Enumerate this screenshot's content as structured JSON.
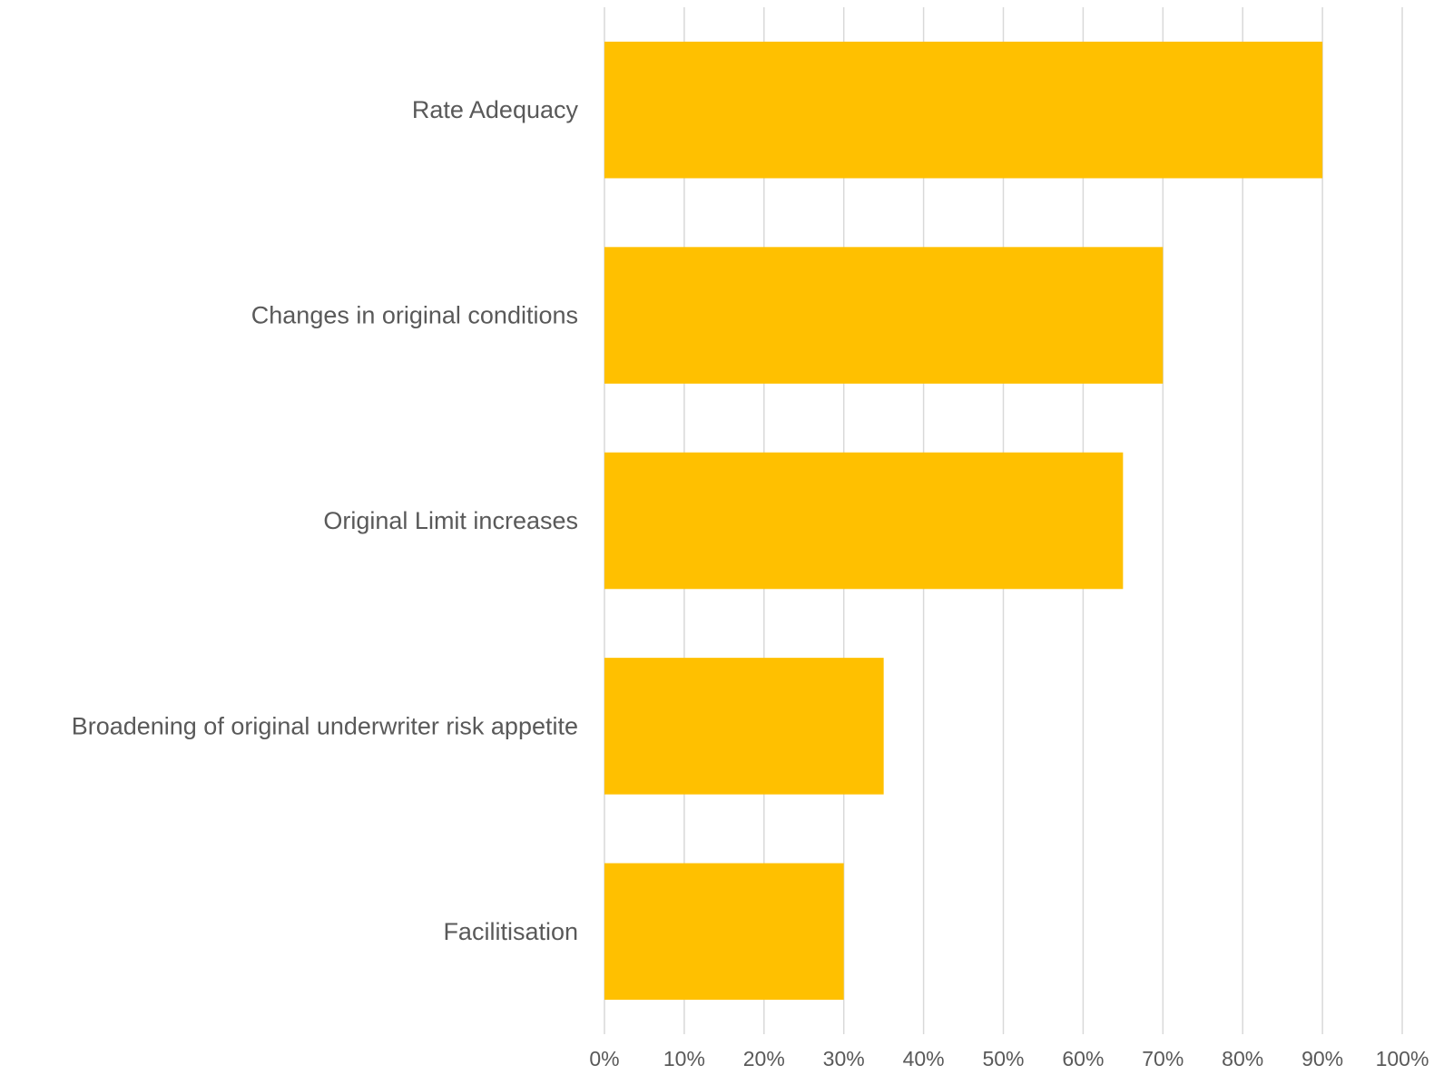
{
  "chart_data": {
    "type": "bar",
    "orientation": "horizontal",
    "title": "",
    "xlabel": "",
    "ylabel": "",
    "categories": [
      "Rate Adequacy",
      "Changes in original conditions",
      "Original Limit increases",
      "Broadening of original underwriter risk appetite",
      "Facilitisation"
    ],
    "values": [
      0.9,
      0.7,
      0.65,
      0.35,
      0.3
    ],
    "xlim": [
      0,
      1
    ],
    "xticks": [
      "0%",
      "10%",
      "20%",
      "30%",
      "40%",
      "50%",
      "60%",
      "70%",
      "80%",
      "90%",
      "100%"
    ],
    "grid": "vertical",
    "legend": "none",
    "bar_color": "#FFC000",
    "grid_color": "#D9D9D9",
    "text_color": "#595959"
  }
}
